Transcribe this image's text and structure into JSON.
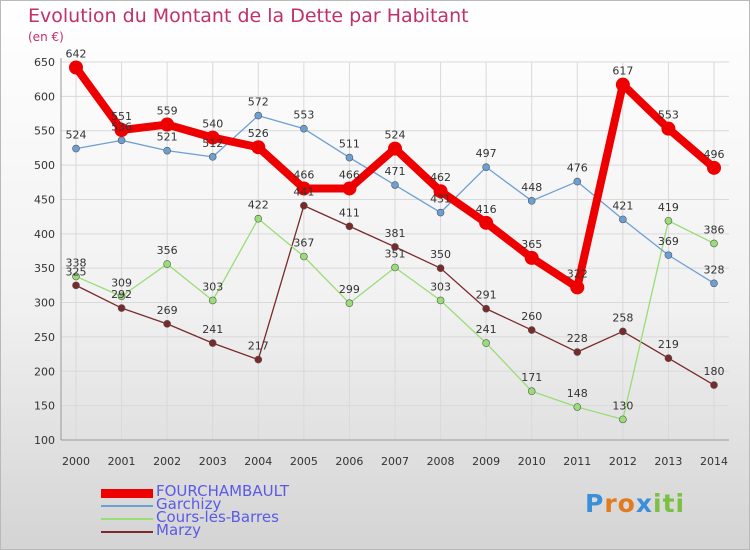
{
  "chart_data": {
    "type": "line",
    "title": "Evolution du Montant de la Dette par Habitant",
    "subtitle": "(en €)",
    "x": [
      "2000",
      "2001",
      "2002",
      "2003",
      "2004",
      "2005",
      "2006",
      "2007",
      "2008",
      "2009",
      "2010",
      "2011",
      "2012",
      "2013",
      "2014"
    ],
    "ylim": [
      100,
      650
    ],
    "yticks": [
      100,
      150,
      200,
      250,
      300,
      350,
      400,
      450,
      500,
      550,
      600,
      650
    ],
    "grid": true,
    "legend_position": "bottom-left",
    "series": [
      {
        "name": "FOURCHAMBAULT",
        "color": "#ee0000",
        "values": [
          642,
          551,
          559,
          540,
          526,
          466,
          466,
          524,
          462,
          416,
          365,
          322,
          617,
          553,
          496
        ]
      },
      {
        "name": "Garchizy",
        "color": "#6c9fd4",
        "values": [
          524,
          536,
          521,
          512,
          572,
          553,
          511,
          471,
          431,
          497,
          448,
          476,
          421,
          369,
          328
        ]
      },
      {
        "name": "Cours-les-Barres",
        "color": "#99dd77",
        "values": [
          338,
          309,
          356,
          303,
          422,
          367,
          299,
          351,
          303,
          241,
          171,
          148,
          130,
          419,
          386
        ]
      },
      {
        "name": "Marzy",
        "color": "#7a2a2a",
        "values": [
          325,
          292,
          269,
          241,
          217,
          441,
          411,
          381,
          350,
          291,
          260,
          228,
          258,
          219,
          180
        ]
      }
    ]
  },
  "logo": {
    "text": "Proxiti",
    "letters": [
      "P",
      "r",
      "o",
      "x",
      "i",
      "t",
      "i"
    ],
    "colors": [
      "#3a8fd8",
      "#e27a1e",
      "#e27a1e",
      "#3a8fd8",
      "#7ac143",
      "#7ac143",
      "#7ac143"
    ]
  }
}
